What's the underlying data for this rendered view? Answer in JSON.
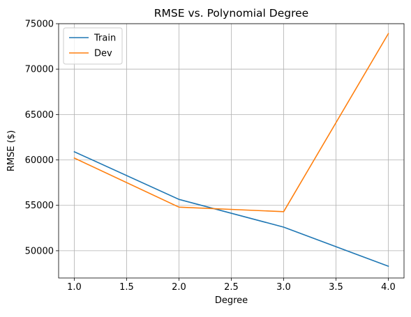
{
  "chart_data": {
    "type": "line",
    "title": "RMSE vs. Polynomial Degree",
    "xlabel": "Degree",
    "ylabel": "RMSE ($)",
    "x": [
      1.0,
      2.0,
      3.0,
      4.0
    ],
    "xticks": [
      "1.0",
      "1.5",
      "2.0",
      "2.5",
      "3.0",
      "3.5",
      "4.0"
    ],
    "xtick_values": [
      1.0,
      1.5,
      2.0,
      2.5,
      3.0,
      3.5,
      4.0
    ],
    "yticks": [
      "50000",
      "55000",
      "60000",
      "65000",
      "70000",
      "75000"
    ],
    "ytick_values": [
      50000,
      55000,
      60000,
      65000,
      70000,
      75000
    ],
    "xlim": [
      0.85,
      4.15
    ],
    "ylim": [
      47000,
      75000
    ],
    "grid": true,
    "legend_position": "top-left",
    "series": [
      {
        "name": "Train",
        "color": "#1f77b4",
        "values": [
          60900,
          55650,
          52600,
          48300
        ]
      },
      {
        "name": "Dev",
        "color": "#ff7f0e",
        "values": [
          60200,
          54800,
          54300,
          73900
        ]
      }
    ]
  }
}
